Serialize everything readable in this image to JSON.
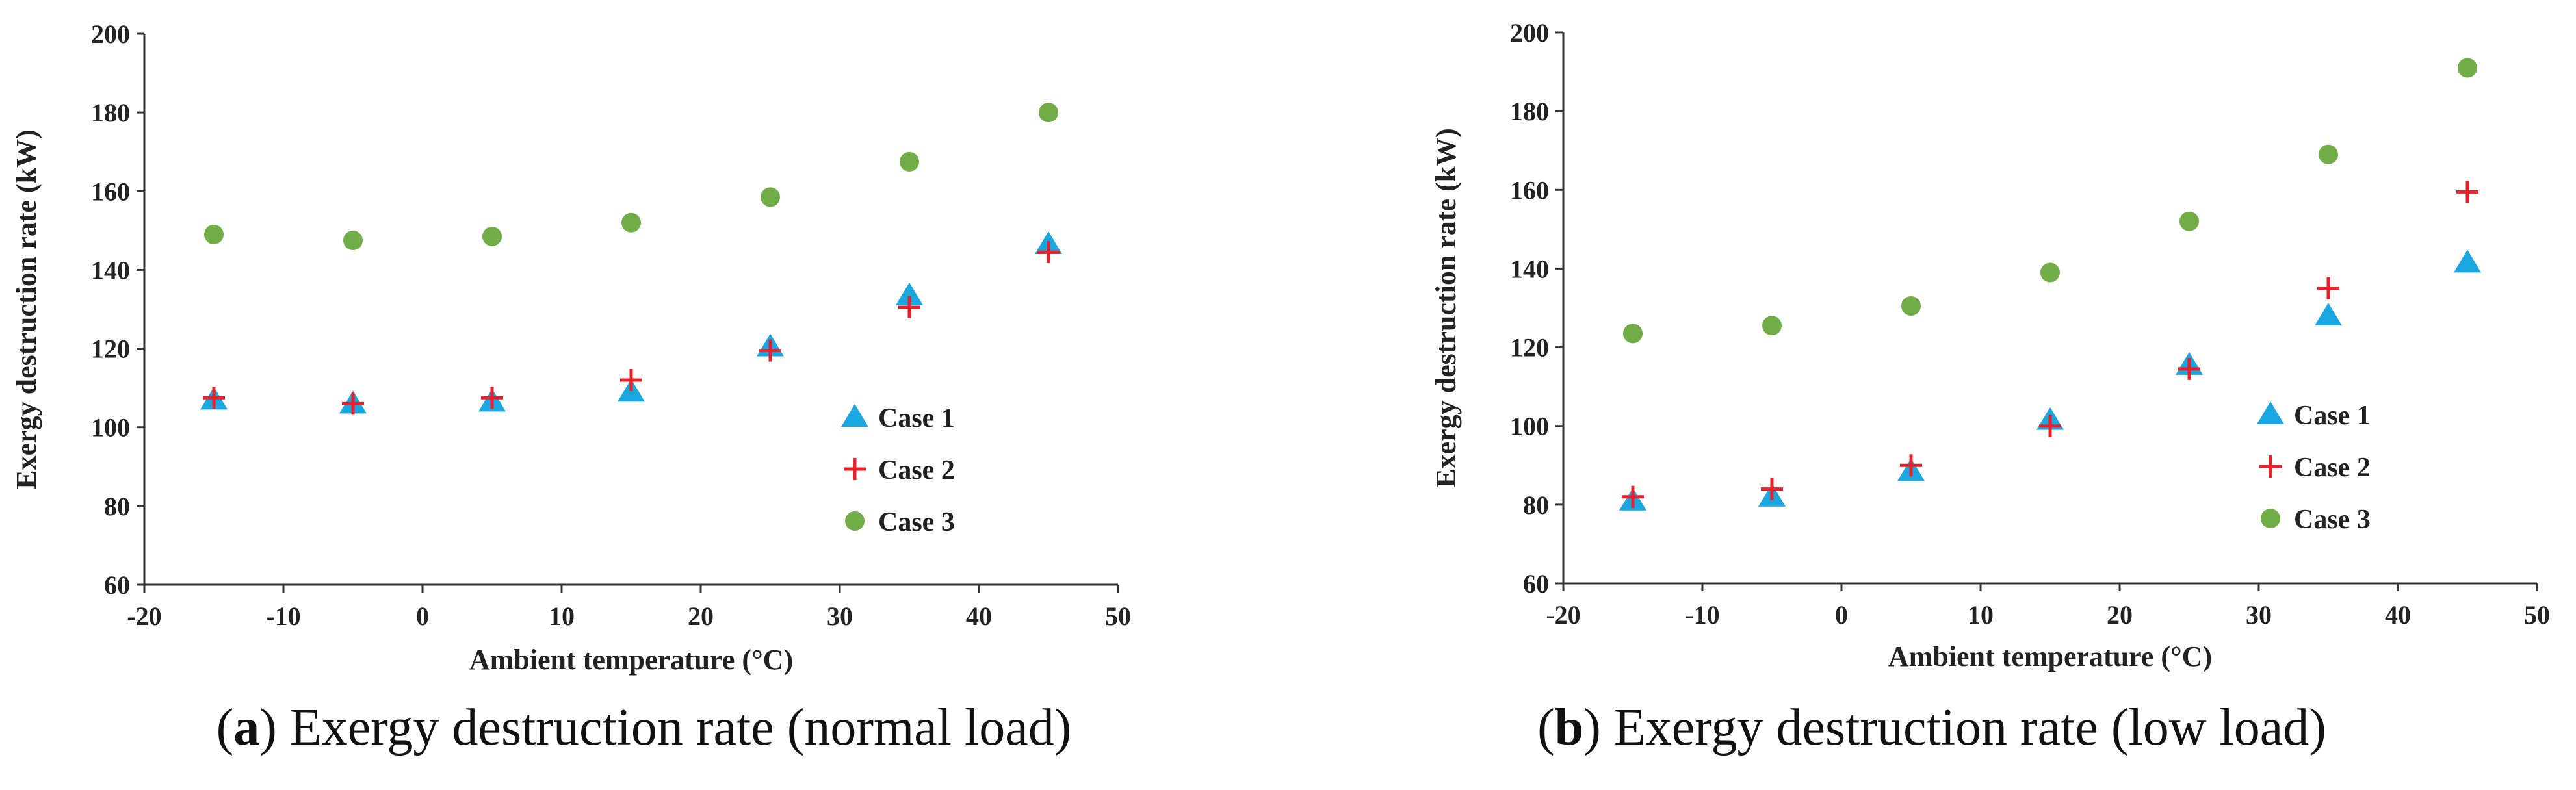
{
  "chart_data": [
    {
      "type": "scatter",
      "panel": "a",
      "caption_letter": "a",
      "caption_text": ") Exergy destruction rate (normal load)",
      "xlabel": "Ambient temperature (°C)",
      "ylabel": "Exergy destruction rate (kW)",
      "xlim": [
        -20,
        50
      ],
      "ylim": [
        60,
        200
      ],
      "xticks": [
        -20,
        -10,
        0,
        10,
        20,
        30,
        40,
        50
      ],
      "yticks": [
        60,
        80,
        100,
        120,
        140,
        160,
        180,
        200
      ],
      "legend_position": "right-center",
      "x": [
        -15,
        -5,
        5,
        15,
        25,
        35,
        45
      ],
      "series": [
        {
          "name": "Case 1",
          "marker": "triangle",
          "color": "#1aa7e0",
          "values": [
            107,
            106,
            106.5,
            109,
            120.5,
            133.5,
            146.5
          ]
        },
        {
          "name": "Case 2",
          "marker": "plus",
          "color": "#e8202a",
          "values": [
            107.5,
            106,
            107.5,
            112,
            119.5,
            130.5,
            144.5
          ]
        },
        {
          "name": "Case 3",
          "marker": "circle",
          "color": "#70ad47",
          "values": [
            149,
            147.5,
            148.5,
            152,
            158.5,
            167.5,
            180
          ]
        }
      ]
    },
    {
      "type": "scatter",
      "panel": "b",
      "caption_letter": "b",
      "caption_text": ") Exergy destruction rate (low load)",
      "xlabel": "Ambient temperature (°C)",
      "ylabel": "Exergy destruction rate (kW)",
      "xlim": [
        -20,
        50
      ],
      "ylim": [
        60,
        200
      ],
      "xticks": [
        -20,
        -10,
        0,
        10,
        20,
        30,
        40,
        50
      ],
      "yticks": [
        60,
        80,
        100,
        120,
        140,
        160,
        180,
        200
      ],
      "legend_position": "right-center",
      "x": [
        -15,
        -5,
        5,
        15,
        25,
        35,
        45
      ],
      "series": [
        {
          "name": "Case 1",
          "marker": "triangle",
          "color": "#1aa7e0",
          "values": [
            81,
            82,
            88.5,
            101.5,
            115.5,
            128,
            141.5
          ]
        },
        {
          "name": "Case 2",
          "marker": "plus",
          "color": "#e8202a",
          "values": [
            82,
            84,
            90,
            100,
            114.5,
            135,
            159.5
          ]
        },
        {
          "name": "Case 3",
          "marker": "circle",
          "color": "#70ad47",
          "values": [
            123.5,
            125.5,
            130.5,
            139,
            152,
            169,
            191
          ]
        }
      ]
    }
  ]
}
